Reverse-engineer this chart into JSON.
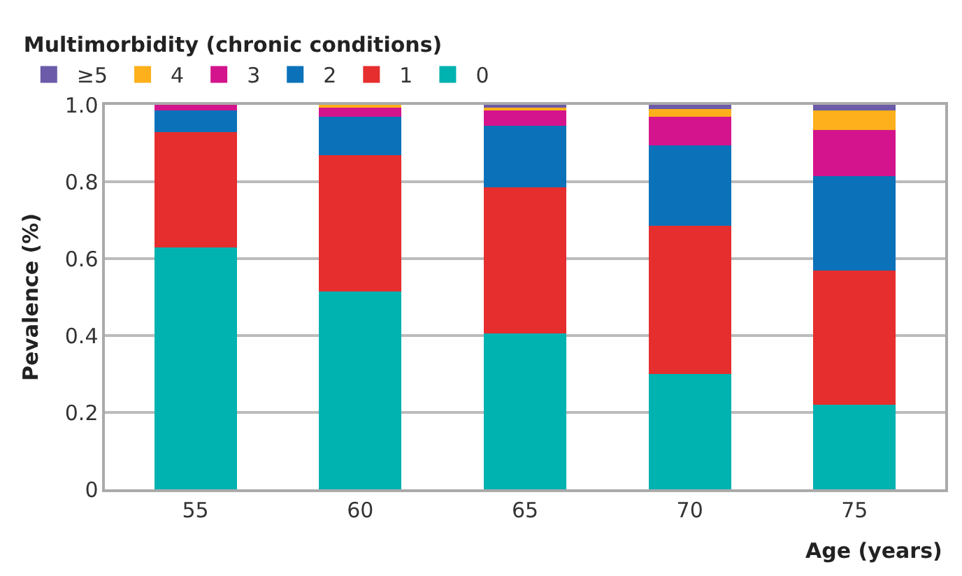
{
  "chart_data": {
    "type": "bar",
    "stacked": true,
    "xlabel": "Age (years)",
    "ylabel": "Pevalence (%)",
    "legend_title": "Multimorbidity (chronic conditions)",
    "categories": [
      "55",
      "60",
      "65",
      "70",
      "75"
    ],
    "series": [
      {
        "name": "0",
        "color": "#00b2b0",
        "values": [
          0.63,
          0.515,
          0.405,
          0.3,
          0.22
        ]
      },
      {
        "name": "1",
        "color": "#e62e2e",
        "values": [
          0.3,
          0.355,
          0.38,
          0.385,
          0.35
        ]
      },
      {
        "name": "2",
        "color": "#0b72b9",
        "values": [
          0.056,
          0.1,
          0.16,
          0.21,
          0.245
        ]
      },
      {
        "name": "3",
        "color": "#d4148c",
        "values": [
          0.014,
          0.025,
          0.04,
          0.075,
          0.12
        ]
      },
      {
        "name": "4",
        "color": "#fdb01b",
        "values": [
          null,
          0.005,
          0.01,
          0.02,
          0.05
        ]
      },
      {
        "name": "≥5",
        "color": "#6b5ba8",
        "values": [
          null,
          null,
          0.005,
          0.01,
          0.015
        ]
      }
    ],
    "ylim": [
      0,
      1
    ],
    "yticks": [
      0,
      0.2,
      0.4,
      0.6,
      0.8,
      {
        "value": 1,
        "label": "1.0"
      }
    ],
    "grid": "y",
    "legend": "top left"
  }
}
